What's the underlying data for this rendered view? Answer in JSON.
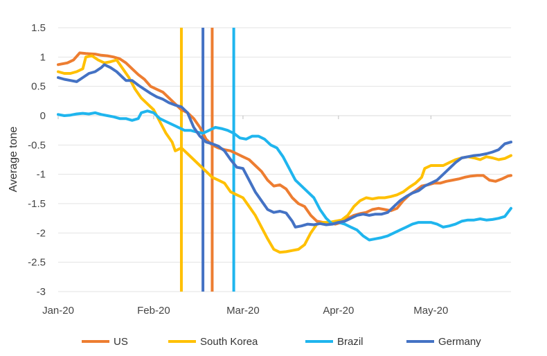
{
  "chart_data": {
    "type": "line",
    "title": "",
    "xlabel": "",
    "ylabel": "Average tone",
    "ylim": [
      -3,
      1.5
    ],
    "yticks": [
      1.5,
      1,
      0.5,
      0,
      -0.5,
      -1,
      -1.5,
      -2,
      -2.5,
      -3
    ],
    "grid": true,
    "legend_position": "bottom",
    "x_tick_labels": [
      "Jan-20",
      "Feb-20",
      "Mar-20",
      "Apr-20",
      "May-20"
    ],
    "x_tick_days": [
      0,
      31,
      60,
      91,
      121
    ],
    "x_range_days": [
      0,
      147
    ],
    "event_lines": [
      {
        "series": "South Korea",
        "day": 40,
        "color": "#ffc000"
      },
      {
        "series": "Germany",
        "day": 47,
        "color": "#4472c4"
      },
      {
        "series": "US",
        "day": 50,
        "color": "#ed7d31"
      },
      {
        "series": "Brazil",
        "day": 57,
        "color": "#1fb5ee"
      }
    ],
    "series": [
      {
        "name": "US",
        "color": "#ed7d31",
        "points": [
          [
            0,
            0.87
          ],
          [
            3,
            0.9
          ],
          [
            5,
            0.95
          ],
          [
            7,
            1.07
          ],
          [
            9,
            1.06
          ],
          [
            12,
            1.05
          ],
          [
            14,
            1.03
          ],
          [
            16,
            1.02
          ],
          [
            18,
            1.0
          ],
          [
            20,
            0.97
          ],
          [
            22,
            0.9
          ],
          [
            24,
            0.8
          ],
          [
            26,
            0.7
          ],
          [
            28,
            0.62
          ],
          [
            30,
            0.5
          ],
          [
            32,
            0.45
          ],
          [
            34,
            0.4
          ],
          [
            36,
            0.3
          ],
          [
            38,
            0.2
          ],
          [
            40,
            0.1
          ],
          [
            42,
            0.05
          ],
          [
            44,
            -0.05
          ],
          [
            46,
            -0.2
          ],
          [
            48,
            -0.4
          ],
          [
            50,
            -0.5
          ],
          [
            52,
            -0.55
          ],
          [
            54,
            -0.58
          ],
          [
            56,
            -0.6
          ],
          [
            58,
            -0.65
          ],
          [
            60,
            -0.7
          ],
          [
            62,
            -0.75
          ],
          [
            64,
            -0.85
          ],
          [
            66,
            -0.95
          ],
          [
            68,
            -1.1
          ],
          [
            70,
            -1.2
          ],
          [
            72,
            -1.18
          ],
          [
            74,
            -1.25
          ],
          [
            76,
            -1.4
          ],
          [
            78,
            -1.5
          ],
          [
            80,
            -1.55
          ],
          [
            82,
            -1.7
          ],
          [
            84,
            -1.8
          ],
          [
            86,
            -1.82
          ],
          [
            88,
            -1.83
          ],
          [
            90,
            -1.85
          ],
          [
            92,
            -1.82
          ],
          [
            94,
            -1.75
          ],
          [
            96,
            -1.7
          ],
          [
            98,
            -1.67
          ],
          [
            100,
            -1.65
          ],
          [
            102,
            -1.6
          ],
          [
            104,
            -1.58
          ],
          [
            106,
            -1.6
          ],
          [
            108,
            -1.62
          ],
          [
            110,
            -1.58
          ],
          [
            112,
            -1.45
          ],
          [
            114,
            -1.35
          ],
          [
            116,
            -1.28
          ],
          [
            118,
            -1.2
          ],
          [
            120,
            -1.18
          ],
          [
            122,
            -1.15
          ],
          [
            124,
            -1.15
          ],
          [
            126,
            -1.12
          ],
          [
            128,
            -1.1
          ],
          [
            130,
            -1.08
          ],
          [
            132,
            -1.05
          ],
          [
            134,
            -1.03
          ],
          [
            136,
            -1.02
          ],
          [
            138,
            -1.02
          ],
          [
            140,
            -1.1
          ],
          [
            142,
            -1.12
          ],
          [
            144,
            -1.08
          ],
          [
            146,
            -1.03
          ],
          [
            147,
            -1.02
          ]
        ]
      },
      {
        "name": "South Korea",
        "color": "#ffc000",
        "points": [
          [
            0,
            0.75
          ],
          [
            2,
            0.72
          ],
          [
            4,
            0.72
          ],
          [
            6,
            0.75
          ],
          [
            8,
            0.8
          ],
          [
            9,
            1.0
          ],
          [
            11,
            1.02
          ],
          [
            13,
            0.95
          ],
          [
            15,
            0.9
          ],
          [
            17,
            0.92
          ],
          [
            19,
            0.95
          ],
          [
            21,
            0.8
          ],
          [
            23,
            0.65
          ],
          [
            25,
            0.45
          ],
          [
            27,
            0.3
          ],
          [
            29,
            0.2
          ],
          [
            31,
            0.1
          ],
          [
            33,
            -0.1
          ],
          [
            35,
            -0.3
          ],
          [
            37,
            -0.45
          ],
          [
            38,
            -0.6
          ],
          [
            40,
            -0.55
          ],
          [
            42,
            -0.65
          ],
          [
            44,
            -0.75
          ],
          [
            46,
            -0.85
          ],
          [
            48,
            -0.95
          ],
          [
            50,
            -1.05
          ],
          [
            52,
            -1.1
          ],
          [
            54,
            -1.15
          ],
          [
            56,
            -1.3
          ],
          [
            58,
            -1.35
          ],
          [
            60,
            -1.4
          ],
          [
            62,
            -1.55
          ],
          [
            64,
            -1.7
          ],
          [
            66,
            -1.9
          ],
          [
            68,
            -2.1
          ],
          [
            70,
            -2.28
          ],
          [
            72,
            -2.33
          ],
          [
            74,
            -2.32
          ],
          [
            76,
            -2.3
          ],
          [
            78,
            -2.28
          ],
          [
            80,
            -2.2
          ],
          [
            82,
            -2.0
          ],
          [
            84,
            -1.85
          ],
          [
            86,
            -1.82
          ],
          [
            88,
            -1.82
          ],
          [
            90,
            -1.8
          ],
          [
            92,
            -1.78
          ],
          [
            94,
            -1.7
          ],
          [
            96,
            -1.55
          ],
          [
            98,
            -1.45
          ],
          [
            100,
            -1.4
          ],
          [
            102,
            -1.42
          ],
          [
            104,
            -1.4
          ],
          [
            106,
            -1.4
          ],
          [
            108,
            -1.38
          ],
          [
            110,
            -1.35
          ],
          [
            112,
            -1.3
          ],
          [
            114,
            -1.22
          ],
          [
            116,
            -1.15
          ],
          [
            118,
            -1.05
          ],
          [
            119,
            -0.9
          ],
          [
            121,
            -0.85
          ],
          [
            123,
            -0.85
          ],
          [
            125,
            -0.85
          ],
          [
            127,
            -0.8
          ],
          [
            129,
            -0.75
          ],
          [
            131,
            -0.72
          ],
          [
            133,
            -0.7
          ],
          [
            135,
            -0.72
          ],
          [
            137,
            -0.75
          ],
          [
            139,
            -0.7
          ],
          [
            141,
            -0.72
          ],
          [
            143,
            -0.75
          ],
          [
            145,
            -0.73
          ],
          [
            147,
            -0.68
          ]
        ]
      },
      {
        "name": "Brazil",
        "color": "#1fb5ee",
        "points": [
          [
            0,
            0.02
          ],
          [
            2,
            0.0
          ],
          [
            4,
            0.01
          ],
          [
            6,
            0.03
          ],
          [
            8,
            0.04
          ],
          [
            10,
            0.03
          ],
          [
            12,
            0.05
          ],
          [
            14,
            0.02
          ],
          [
            16,
            0.0
          ],
          [
            18,
            -0.02
          ],
          [
            20,
            -0.05
          ],
          [
            22,
            -0.05
          ],
          [
            24,
            -0.08
          ],
          [
            26,
            -0.05
          ],
          [
            27,
            0.05
          ],
          [
            29,
            0.08
          ],
          [
            31,
            0.05
          ],
          [
            33,
            -0.05
          ],
          [
            35,
            -0.1
          ],
          [
            37,
            -0.15
          ],
          [
            39,
            -0.2
          ],
          [
            41,
            -0.25
          ],
          [
            43,
            -0.25
          ],
          [
            45,
            -0.28
          ],
          [
            47,
            -0.3
          ],
          [
            49,
            -0.25
          ],
          [
            51,
            -0.2
          ],
          [
            53,
            -0.22
          ],
          [
            55,
            -0.25
          ],
          [
            57,
            -0.3
          ],
          [
            59,
            -0.38
          ],
          [
            61,
            -0.4
          ],
          [
            63,
            -0.35
          ],
          [
            65,
            -0.35
          ],
          [
            67,
            -0.4
          ],
          [
            69,
            -0.5
          ],
          [
            71,
            -0.55
          ],
          [
            73,
            -0.7
          ],
          [
            75,
            -0.9
          ],
          [
            77,
            -1.1
          ],
          [
            79,
            -1.2
          ],
          [
            81,
            -1.3
          ],
          [
            83,
            -1.4
          ],
          [
            85,
            -1.6
          ],
          [
            87,
            -1.75
          ],
          [
            89,
            -1.85
          ],
          [
            91,
            -1.82
          ],
          [
            93,
            -1.85
          ],
          [
            95,
            -1.9
          ],
          [
            97,
            -1.95
          ],
          [
            99,
            -2.05
          ],
          [
            101,
            -2.12
          ],
          [
            103,
            -2.1
          ],
          [
            105,
            -2.08
          ],
          [
            107,
            -2.05
          ],
          [
            109,
            -2.0
          ],
          [
            111,
            -1.95
          ],
          [
            113,
            -1.9
          ],
          [
            115,
            -1.85
          ],
          [
            117,
            -1.82
          ],
          [
            119,
            -1.82
          ],
          [
            121,
            -1.82
          ],
          [
            123,
            -1.85
          ],
          [
            125,
            -1.9
          ],
          [
            127,
            -1.88
          ],
          [
            129,
            -1.85
          ],
          [
            131,
            -1.8
          ],
          [
            133,
            -1.78
          ],
          [
            135,
            -1.78
          ],
          [
            137,
            -1.76
          ],
          [
            139,
            -1.78
          ],
          [
            141,
            -1.77
          ],
          [
            143,
            -1.75
          ],
          [
            145,
            -1.72
          ],
          [
            147,
            -1.58
          ]
        ]
      },
      {
        "name": "Germany",
        "color": "#4472c4",
        "points": [
          [
            0,
            0.65
          ],
          [
            2,
            0.62
          ],
          [
            4,
            0.6
          ],
          [
            6,
            0.58
          ],
          [
            8,
            0.65
          ],
          [
            10,
            0.72
          ],
          [
            12,
            0.75
          ],
          [
            14,
            0.82
          ],
          [
            15,
            0.87
          ],
          [
            17,
            0.82
          ],
          [
            19,
            0.75
          ],
          [
            21,
            0.65
          ],
          [
            22,
            0.6
          ],
          [
            24,
            0.6
          ],
          [
            26,
            0.52
          ],
          [
            28,
            0.45
          ],
          [
            30,
            0.38
          ],
          [
            32,
            0.32
          ],
          [
            34,
            0.28
          ],
          [
            36,
            0.22
          ],
          [
            38,
            0.18
          ],
          [
            40,
            0.15
          ],
          [
            42,
            0.05
          ],
          [
            44,
            -0.2
          ],
          [
            46,
            -0.35
          ],
          [
            48,
            -0.45
          ],
          [
            50,
            -0.48
          ],
          [
            52,
            -0.52
          ],
          [
            54,
            -0.6
          ],
          [
            56,
            -0.75
          ],
          [
            58,
            -0.88
          ],
          [
            60,
            -0.9
          ],
          [
            62,
            -1.1
          ],
          [
            64,
            -1.3
          ],
          [
            66,
            -1.45
          ],
          [
            68,
            -1.6
          ],
          [
            70,
            -1.65
          ],
          [
            72,
            -1.63
          ],
          [
            74,
            -1.66
          ],
          [
            76,
            -1.8
          ],
          [
            77,
            -1.9
          ],
          [
            79,
            -1.88
          ],
          [
            81,
            -1.85
          ],
          [
            83,
            -1.86
          ],
          [
            85,
            -1.84
          ],
          [
            87,
            -1.86
          ],
          [
            89,
            -1.85
          ],
          [
            91,
            -1.82
          ],
          [
            93,
            -1.8
          ],
          [
            95,
            -1.75
          ],
          [
            97,
            -1.7
          ],
          [
            99,
            -1.68
          ],
          [
            101,
            -1.7
          ],
          [
            103,
            -1.68
          ],
          [
            105,
            -1.68
          ],
          [
            107,
            -1.65
          ],
          [
            109,
            -1.55
          ],
          [
            111,
            -1.45
          ],
          [
            113,
            -1.38
          ],
          [
            115,
            -1.32
          ],
          [
            117,
            -1.28
          ],
          [
            119,
            -1.2
          ],
          [
            121,
            -1.15
          ],
          [
            123,
            -1.1
          ],
          [
            125,
            -1.0
          ],
          [
            127,
            -0.9
          ],
          [
            129,
            -0.8
          ],
          [
            131,
            -0.72
          ],
          [
            133,
            -0.7
          ],
          [
            135,
            -0.68
          ],
          [
            137,
            -0.67
          ],
          [
            139,
            -0.65
          ],
          [
            141,
            -0.62
          ],
          [
            143,
            -0.58
          ],
          [
            145,
            -0.48
          ],
          [
            147,
            -0.45
          ]
        ]
      }
    ]
  }
}
